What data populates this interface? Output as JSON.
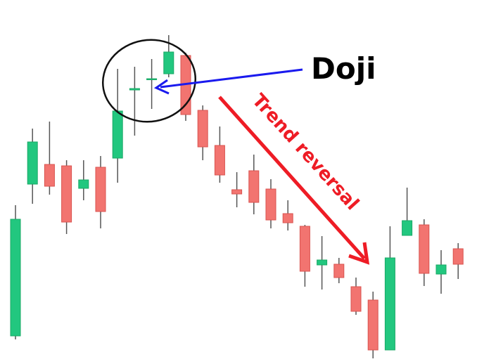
{
  "chart_data": {
    "type": "candlestick",
    "open": [
      40,
      256,
      284,
      282,
      250,
      280,
      293,
      390,
      405,
      413,
      439,
      361,
      311,
      248,
      275,
      249,
      214,
      196,
      141,
      142,
      110,
      91,
      20,
      183,
      198,
      128,
      164
    ],
    "high": [
      226,
      335,
      345,
      290,
      290,
      296,
      420,
      423,
      434,
      468,
      443,
      368,
      338,
      273,
      298,
      263,
      233,
      198,
      182,
      151,
      123,
      103,
      196,
      251,
      206,
      162,
      172
    ],
    "low": [
      35,
      228,
      241,
      185,
      233,
      193,
      258,
      325,
      363,
      408,
      346,
      290,
      258,
      223,
      213,
      193,
      190,
      110,
      106,
      115,
      70,
      8,
      20,
      183,
      111,
      100,
      121
    ],
    "close": [
      206,
      316,
      253,
      202,
      262,
      217,
      360,
      392,
      406,
      444,
      355,
      309,
      269,
      242,
      230,
      205,
      201,
      132,
      148,
      123,
      75,
      20,
      151,
      204,
      129,
      141,
      142
    ],
    "ylim": [
      0,
      518
    ],
    "up_color": "#22c77f",
    "down_color": "#f27470",
    "annotations": [
      "Doji",
      "Trend reversal"
    ]
  }
}
